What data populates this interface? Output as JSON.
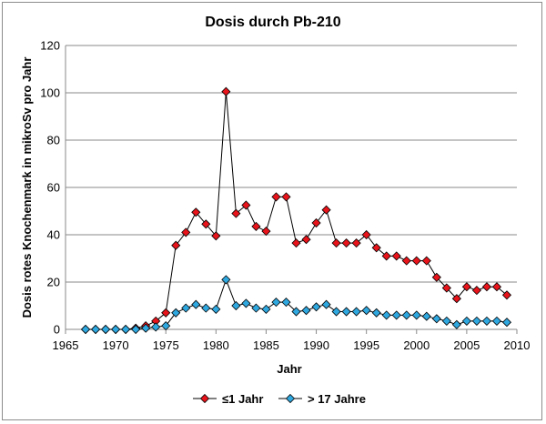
{
  "chart_data": {
    "type": "line",
    "title": "Dosis durch Pb-210",
    "xlabel": "Jahr",
    "ylabel": "Dosis rotes Knochenmark in mikroSv pro Jahr",
    "xlim": [
      1965,
      2010
    ],
    "ylim": [
      0,
      120
    ],
    "xticks": [
      1965,
      1970,
      1975,
      1980,
      1985,
      1990,
      1995,
      2000,
      2005,
      2010
    ],
    "yticks": [
      0,
      20,
      40,
      60,
      80,
      100,
      120
    ],
    "grid": "horizontal",
    "legend_position": "bottom",
    "x": [
      1967,
      1968,
      1969,
      1970,
      1971,
      1972,
      1973,
      1974,
      1975,
      1976,
      1977,
      1978,
      1979,
      1980,
      1981,
      1982,
      1983,
      1984,
      1985,
      1986,
      1987,
      1988,
      1989,
      1990,
      1991,
      1992,
      1993,
      1994,
      1995,
      1996,
      1997,
      1998,
      1999,
      2000,
      2001,
      2002,
      2003,
      2004,
      2005,
      2006,
      2007,
      2008,
      2009
    ],
    "series": [
      {
        "name": "≤1 Jahr",
        "color": "#e8141b",
        "marker": "diamond",
        "values": [
          0,
          0,
          0,
          0,
          0,
          0.5,
          1.5,
          3.5,
          7,
          35.5,
          41,
          49.5,
          44.5,
          39.5,
          100.5,
          49,
          52.5,
          43.5,
          41.5,
          56,
          56,
          36.5,
          38,
          45,
          50.5,
          36.5,
          36.5,
          36.5,
          40,
          34.5,
          31,
          31,
          29,
          29,
          29,
          22,
          17.5,
          13,
          18,
          16.5,
          18,
          18,
          14.5
        ]
      },
      {
        "name": "> 17 Jahre",
        "color": "#2fa8e0",
        "marker": "diamond",
        "values": [
          0,
          0,
          0,
          0,
          0,
          0,
          0.5,
          1,
          1.5,
          7,
          9,
          10.5,
          9,
          8.5,
          21,
          10,
          11,
          9,
          8.5,
          11.5,
          11.5,
          7.5,
          8,
          9.5,
          10.5,
          7.5,
          7.5,
          7.5,
          8,
          7,
          6,
          6,
          6,
          6,
          5.5,
          4.5,
          3.5,
          2,
          3.5,
          3.5,
          3.5,
          3.5,
          3
        ]
      }
    ]
  }
}
